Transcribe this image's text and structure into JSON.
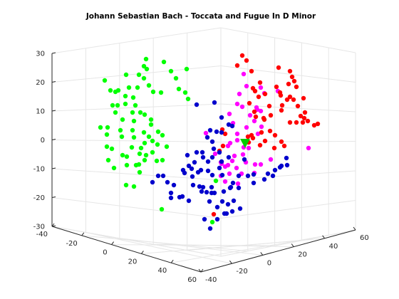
{
  "chart_data": {
    "type": "scatter3d",
    "title": "Johann Sebastian Bach - Toccata and Fugue In D Minor",
    "xlabel": "",
    "ylabel": "",
    "zlabel": "",
    "xlim": [
      -40,
      60
    ],
    "ylim": [
      -40,
      60
    ],
    "zlim": [
      -30,
      30
    ],
    "xticks": [
      "-40",
      "-20",
      "0",
      "20",
      "40",
      "60"
    ],
    "yticks": [
      "-40",
      "-20",
      "0",
      "20",
      "40",
      "60"
    ],
    "zticks": [
      "-30",
      "-20",
      "-10",
      "0",
      "10",
      "20",
      "30"
    ],
    "grid": true,
    "legend": "none",
    "colors": {
      "green": "#00ff00",
      "blue": "#0000cc",
      "red": "#ff0000",
      "magenta": "#ff00ff",
      "marker": "#00cc00"
    },
    "screen_points": {
      "green": [
        [
          205,
          83
        ],
        [
          230,
          87
        ],
        [
          240,
          100
        ],
        [
          202,
          93
        ],
        [
          206,
          97
        ],
        [
          262,
          97
        ],
        [
          177,
          105
        ],
        [
          195,
          105
        ],
        [
          247,
          110
        ],
        [
          202,
          110
        ],
        [
          209,
          120
        ],
        [
          251,
          125
        ],
        [
          147,
          113
        ],
        [
          155,
          127
        ],
        [
          166,
          127
        ],
        [
          162,
          129
        ],
        [
          181,
          123
        ],
        [
          193,
          123
        ],
        [
          215,
          129
        ],
        [
          226,
          130
        ],
        [
          260,
          130
        ],
        [
          264,
          139
        ],
        [
          165,
          148
        ],
        [
          176,
          146
        ],
        [
          190,
          148
        ],
        [
          158,
          148
        ],
        [
          176,
          135
        ],
        [
          187,
          137
        ],
        [
          162,
          158
        ],
        [
          186,
          158
        ],
        [
          197,
          158
        ],
        [
          203,
          161
        ],
        [
          172,
          168
        ],
        [
          188,
          170
        ],
        [
          212,
          168
        ],
        [
          141,
          179
        ],
        [
          151,
          179
        ],
        [
          169,
          183
        ],
        [
          186,
          183
        ],
        [
          202,
          186
        ],
        [
          212,
          175
        ],
        [
          222,
          185
        ],
        [
          150,
          189
        ],
        [
          171,
          192
        ],
        [
          188,
          193
        ],
        [
          209,
          192
        ],
        [
          228,
          190
        ],
        [
          214,
          198
        ],
        [
          203,
          201
        ],
        [
          150,
          206
        ],
        [
          157,
          209
        ],
        [
          185,
          207
        ],
        [
          198,
          208
        ],
        [
          221,
          203
        ],
        [
          234,
          206
        ],
        [
          172,
          218
        ],
        [
          214,
          214
        ],
        [
          178,
          220
        ],
        [
          196,
          216
        ],
        [
          152,
          225
        ],
        [
          205,
          218
        ],
        [
          178,
          232
        ],
        [
          191,
          232
        ],
        [
          220,
          226
        ],
        [
          228,
          225
        ],
        [
          160,
          236
        ],
        [
          196,
          242
        ],
        [
          177,
          260
        ],
        [
          188,
          262
        ],
        [
          203,
          225
        ],
        [
          227,
          294
        ],
        [
          195,
          231
        ],
        [
          298,
          312
        ],
        [
          303,
          254
        ]
      ],
      "blue": [
        [
          276,
          147
        ],
        [
          301,
          144
        ],
        [
          311,
          165
        ],
        [
          321,
          175
        ],
        [
          326,
          177
        ],
        [
          295,
          183
        ],
        [
          304,
          185
        ],
        [
          311,
          186
        ],
        [
          291,
          193
        ],
        [
          298,
          199
        ],
        [
          300,
          209
        ],
        [
          284,
          214
        ],
        [
          308,
          214
        ],
        [
          276,
          214
        ],
        [
          263,
          218
        ],
        [
          285,
          221
        ],
        [
          321,
          221
        ],
        [
          273,
          228
        ],
        [
          298,
          221
        ],
        [
          265,
          233
        ],
        [
          292,
          227
        ],
        [
          311,
          227
        ],
        [
          278,
          242
        ],
        [
          269,
          237
        ],
        [
          282,
          239
        ],
        [
          292,
          240
        ],
        [
          257,
          239
        ],
        [
          259,
          243
        ],
        [
          270,
          248
        ],
        [
          298,
          246
        ],
        [
          312,
          246
        ],
        [
          229,
          247
        ],
        [
          222,
          247
        ],
        [
          235,
          256
        ],
        [
          214,
          256
        ],
        [
          244,
          260
        ],
        [
          271,
          260
        ],
        [
          285,
          263
        ],
        [
          297,
          263
        ],
        [
          280,
          262
        ],
        [
          327,
          257
        ],
        [
          335,
          247
        ],
        [
          348,
          247
        ],
        [
          356,
          245
        ],
        [
          371,
          252
        ],
        [
          376,
          244
        ],
        [
          386,
          239
        ],
        [
          393,
          235
        ],
        [
          383,
          247
        ],
        [
          395,
          233
        ],
        [
          403,
          232
        ],
        [
          402,
          222
        ],
        [
          240,
          271
        ],
        [
          265,
          282
        ],
        [
          283,
          269
        ],
        [
          290,
          270
        ],
        [
          297,
          271
        ],
        [
          314,
          269
        ],
        [
          323,
          264
        ],
        [
          335,
          264
        ],
        [
          328,
          282
        ],
        [
          294,
          283
        ],
        [
          312,
          283
        ],
        [
          318,
          300
        ],
        [
          326,
          297
        ],
        [
          320,
          287
        ],
        [
          337,
          293
        ],
        [
          252,
          277
        ],
        [
          240,
          278
        ],
        [
          305,
          291
        ],
        [
          287,
          308
        ],
        [
          305,
          308
        ],
        [
          295,
          321
        ],
        [
          315,
          300
        ],
        [
          301,
          271
        ],
        [
          256,
          276
        ],
        [
          343,
          224
        ],
        [
          356,
          257
        ],
        [
          324,
          263
        ],
        [
          308,
          236
        ]
      ],
      "red": [
        [
          340,
          78
        ],
        [
          346,
          85
        ],
        [
          333,
          92
        ],
        [
          353,
          100
        ],
        [
          391,
          95
        ],
        [
          410,
          108
        ],
        [
          413,
          114
        ],
        [
          405,
          118
        ],
        [
          416,
          122
        ],
        [
          365,
          116
        ],
        [
          355,
          124
        ],
        [
          358,
          128
        ],
        [
          388,
          122
        ],
        [
          393,
          130
        ],
        [
          372,
          132
        ],
        [
          394,
          134
        ],
        [
          407,
          136
        ],
        [
          403,
          140
        ],
        [
          412,
          140
        ],
        [
          426,
          138
        ],
        [
          396,
          148
        ],
        [
          378,
          149
        ],
        [
          395,
          155
        ],
        [
          418,
          149
        ],
        [
          428,
          158
        ],
        [
          422,
          163
        ],
        [
          427,
          166
        ],
        [
          425,
          172
        ],
        [
          432,
          170
        ],
        [
          441,
          176
        ],
        [
          446,
          174
        ],
        [
          407,
          172
        ],
        [
          416,
          172
        ],
        [
          380,
          162
        ],
        [
          370,
          166
        ],
        [
          379,
          184
        ],
        [
          367,
          186
        ],
        [
          353,
          190
        ],
        [
          348,
          192
        ],
        [
          316,
          188
        ],
        [
          355,
          194
        ],
        [
          386,
          190
        ],
        [
          395,
          199
        ],
        [
          399,
          205
        ],
        [
          385,
          208
        ],
        [
          372,
          198
        ],
        [
          349,
          200
        ],
        [
          365,
          204
        ],
        [
          312,
          182
        ],
        [
          313,
          205
        ],
        [
          308,
          212
        ],
        [
          300,
          301
        ],
        [
          350,
          145
        ],
        [
          371,
          168
        ],
        [
          407,
          100
        ],
        [
          357,
          157
        ],
        [
          363,
          136
        ],
        [
          359,
          164
        ]
      ],
      "magenta": [
        [
          342,
          104
        ],
        [
          346,
          121
        ],
        [
          333,
          146
        ],
        [
          340,
          150
        ],
        [
          322,
          160
        ],
        [
          327,
          173
        ],
        [
          351,
          162
        ],
        [
          357,
          170
        ],
        [
          346,
          179
        ],
        [
          367,
          178
        ],
        [
          362,
          188
        ],
        [
          333,
          188
        ],
        [
          333,
          197
        ],
        [
          323,
          201
        ],
        [
          320,
          205
        ],
        [
          302,
          216
        ],
        [
          310,
          228
        ],
        [
          329,
          219
        ],
        [
          341,
          217
        ],
        [
          326,
          226
        ],
        [
          311,
          230
        ],
        [
          345,
          228
        ],
        [
          316,
          234
        ],
        [
          322,
          244
        ],
        [
          339,
          244
        ],
        [
          334,
          258
        ],
        [
          366,
          231
        ],
        [
          380,
          224
        ],
        [
          366,
          156
        ],
        [
          360,
          151
        ],
        [
          371,
          131
        ],
        [
          390,
          128
        ],
        [
          289,
          187
        ],
        [
          433,
          208
        ],
        [
          357,
          243
        ],
        [
          336,
          132
        ],
        [
          366,
          123
        ],
        [
          349,
          208
        ],
        [
          332,
          236
        ],
        [
          316,
          255
        ],
        [
          358,
          231
        ],
        [
          361,
          154
        ],
        [
          310,
          247
        ],
        [
          342,
          207
        ],
        [
          320,
          232
        ]
      ],
      "triangle": [
        344,
        201
      ]
    }
  }
}
